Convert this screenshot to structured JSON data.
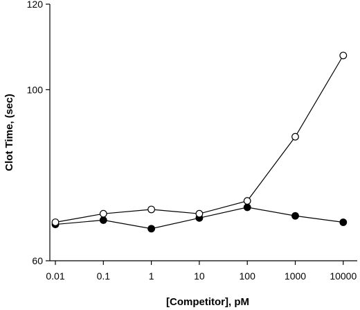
{
  "chart_data": {
    "type": "line",
    "xlabel": "[Competitor], pM",
    "ylabel": "Clot Time, (sec)",
    "x_scale": "log",
    "x": [
      0.01,
      0.1,
      1,
      10,
      100,
      1000,
      10000
    ],
    "x_tick_labels": [
      "0.01",
      "0.1",
      "1",
      "10",
      "100",
      "1000",
      "10000"
    ],
    "ylim": [
      60,
      120
    ],
    "y_ticks": [
      60,
      100,
      120
    ],
    "y_tick_labels": [
      "60",
      "100",
      "120"
    ],
    "series": [
      {
        "marker": "open-circle",
        "values": [
          69.0,
          71.0,
          72.0,
          71.0,
          74.0,
          89.0,
          108.0
        ]
      },
      {
        "marker": "filled-circle",
        "values": [
          68.5,
          69.5,
          67.5,
          70.0,
          72.5,
          70.5,
          69.0
        ]
      }
    ]
  }
}
